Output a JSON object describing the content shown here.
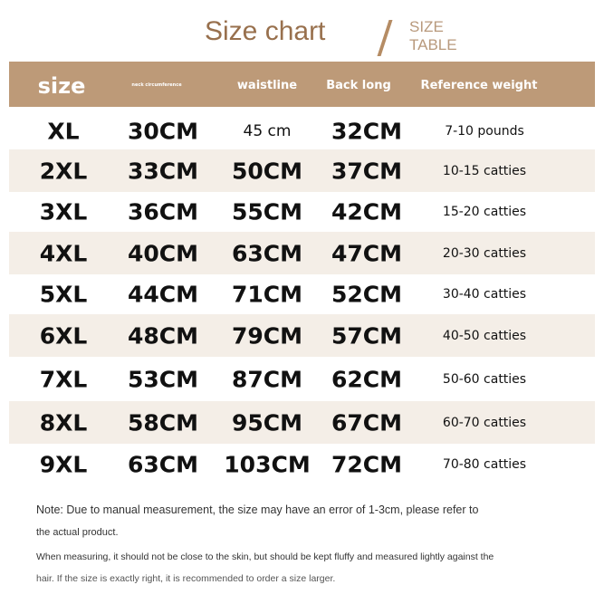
{
  "title": "Size chart",
  "subtitle_line1": "SIZE",
  "subtitle_line2": "TABLE",
  "headers": [
    "size",
    "neck circumference",
    "waistline",
    "Back long",
    "Reference weight"
  ],
  "rows": [
    [
      "XL",
      "30CM",
      "45 cm",
      "32CM",
      "7-10 pounds"
    ],
    [
      "2XL",
      "33CM",
      "50CM",
      "37CM",
      "10-15 catties"
    ],
    [
      "3XL",
      "36CM",
      "55CM",
      "42CM",
      "15-20 catties"
    ],
    [
      "4XL",
      "40CM",
      "63CM",
      "47CM",
      "20-30 catties"
    ],
    [
      "5XL",
      "44CM",
      "71CM",
      "52CM",
      "30-40 catties"
    ],
    [
      "6XL",
      "48CM",
      "79CM",
      "57CM",
      "40-50 catties"
    ],
    [
      "7XL",
      "53CM",
      "87CM",
      "62CM",
      "50-60 catties"
    ],
    [
      "8XL",
      "58CM",
      "95CM",
      "67CM",
      "60-70 catties"
    ],
    [
      "9XL",
      "63CM",
      "103CM",
      "72CM",
      "70-80 catties"
    ]
  ],
  "notes": [
    "Note: Due to manual measurement, the size may have an error of 1-3cm, please refer to",
    "the actual product.",
    "When measuring, it should not be close to the skin, but should be kept fluffy and measured lightly against the",
    "hair. If the size is exactly right, it is recommended to order a size larger."
  ],
  "colors": {
    "header": "#bd9a78",
    "title": "#98704d",
    "alt_row": "#f4eee7"
  }
}
